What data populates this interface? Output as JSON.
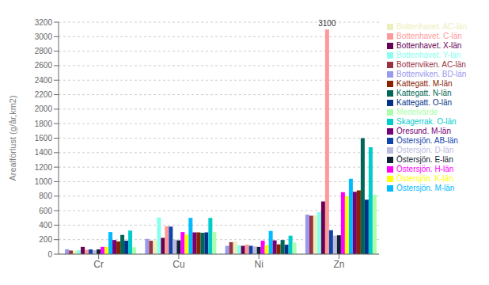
{
  "chart_data": {
    "type": "bar",
    "categories": [
      "Cr",
      "Cu",
      "Ni",
      "Zn"
    ],
    "series": [
      {
        "name": "Bottenviken. BD-län",
        "color": "#9999EE",
        "values": [
          68,
          210,
          115,
          545
        ]
      },
      {
        "name": "Bottenviken. AC-län",
        "color": "#993344",
        "values": [
          50,
          185,
          165,
          530
        ]
      },
      {
        "name": "Bottenhavet. AC-län",
        "color": "#EEEEBB",
        "values": [
          48,
          190,
          175,
          535
        ]
      },
      {
        "name": "Bottenhavet. Y-län",
        "color": "#88FFEE",
        "values": [
          55,
          505,
          120,
          580
        ]
      },
      {
        "name": "Bottenhavet. X-län",
        "color": "#660055",
        "values": [
          100,
          225,
          115,
          725
        ]
      },
      {
        "name": "Bottenhavet. C-län",
        "color": "#FF9999",
        "values": [
          60,
          385,
          130,
          3100
        ]
      },
      {
        "name": "Östersjön. AB-län",
        "color": "#1144AA",
        "values": [
          65,
          380,
          115,
          330
        ]
      },
      {
        "name": "Östersjön. D-län",
        "color": "#BBBBDD",
        "values": [
          55,
          200,
          105,
          255
        ]
      },
      {
        "name": "Östersjön. E-län",
        "color": "#112233",
        "values": [
          65,
          190,
          100,
          260
        ]
      },
      {
        "name": "Östersjön. H-län",
        "color": "#FF00FF",
        "values": [
          100,
          305,
          185,
          855
        ]
      },
      {
        "name": "Östersjön. K-län",
        "color": "#FFFF00",
        "values": [
          100,
          270,
          125,
          800
        ]
      },
      {
        "name": "Östersjön. M-län",
        "color": "#00BBFF",
        "values": [
          305,
          500,
          320,
          1040
        ]
      },
      {
        "name": "Öresund. M-län",
        "color": "#770077",
        "values": [
          195,
          300,
          190,
          860
        ]
      },
      {
        "name": "Kattegatt. M-län",
        "color": "#882200",
        "values": [
          175,
          300,
          135,
          880
        ]
      },
      {
        "name": "Kattegatt. N-län",
        "color": "#006655",
        "values": [
          265,
          295,
          195,
          1600
        ]
      },
      {
        "name": "Kattegatt. O-län",
        "color": "#003388",
        "values": [
          185,
          300,
          130,
          750
        ]
      },
      {
        "name": "Skagerrak. O-län",
        "color": "#00CCCC",
        "values": [
          325,
          500,
          255,
          1475
        ]
      },
      {
        "name": "Medelvärde",
        "color": "#AAFFAA",
        "values": [
          95,
          305,
          160,
          820
        ]
      }
    ],
    "ylabel": "Arealförlust (g/år,km2)",
    "ylim": [
      0,
      3200
    ],
    "yticks": [
      0,
      200,
      400,
      600,
      800,
      1000,
      1200,
      1400,
      1600,
      1800,
      2000,
      2200,
      2400,
      2600,
      2800,
      3000,
      3200
    ],
    "grid": true,
    "legend": "right",
    "annotations": [
      {
        "text": "3100",
        "category": "Zn",
        "series": "Bottenhavet. C-län"
      }
    ]
  }
}
